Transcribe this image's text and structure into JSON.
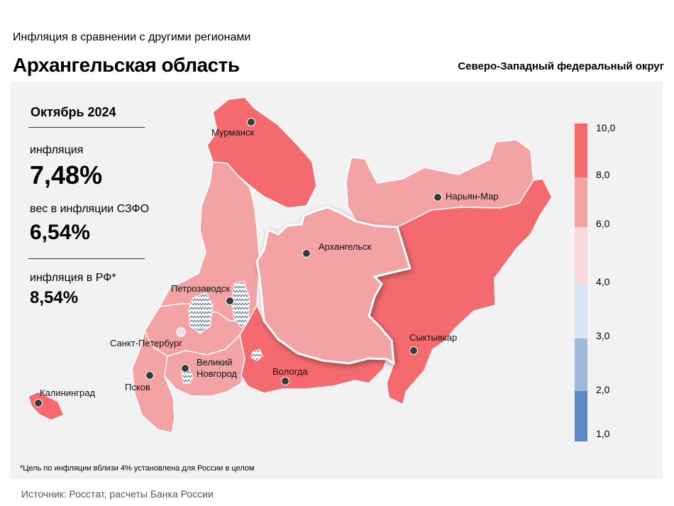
{
  "header": {
    "supertitle": "Инфляция в сравнении с другими регионами",
    "title": "Архангельская область",
    "district": "Северо-Западный федеральный округ"
  },
  "stats": {
    "period": "Октябрь 2024",
    "inflation_label": "инфляция",
    "inflation_value": "7,48%",
    "weight_label": "вес в инфляции СЗФО",
    "weight_value": "6,54%",
    "rf_label": "инфляция в РФ*",
    "rf_value": "8,54%"
  },
  "map": {
    "cities": {
      "murmansk": "Мурманск",
      "naryan_mar": "Нарьян-Мар",
      "arkhangelsk": "Архангельск",
      "petrozavodsk": "Петрозаводск",
      "spb": "Санкт-Петербург",
      "novgorod_1": "Великий",
      "novgorod_2": "Новгород",
      "pskov": "Псков",
      "vologda": "Вологда",
      "syktyvkar": "Сыктывкар",
      "kaliningrad": "Калининград"
    },
    "colors": {
      "high": "#f46a6e",
      "mid": "#f4a3a5",
      "low": "#fadadd",
      "blue_light": "#dbe5f3",
      "blue_mid": "#9fb9dc",
      "blue_dark": "#5b89c6"
    }
  },
  "legend": {
    "ticks": [
      "10,0",
      "8,0",
      "6,0",
      "4,0",
      "3,0",
      "2,0",
      "1,0"
    ]
  },
  "footnote": "*Цель по инфляции вблизи 4% установлена для России в целом",
  "source": "Источник: Росстат, расчеты Банка России"
}
